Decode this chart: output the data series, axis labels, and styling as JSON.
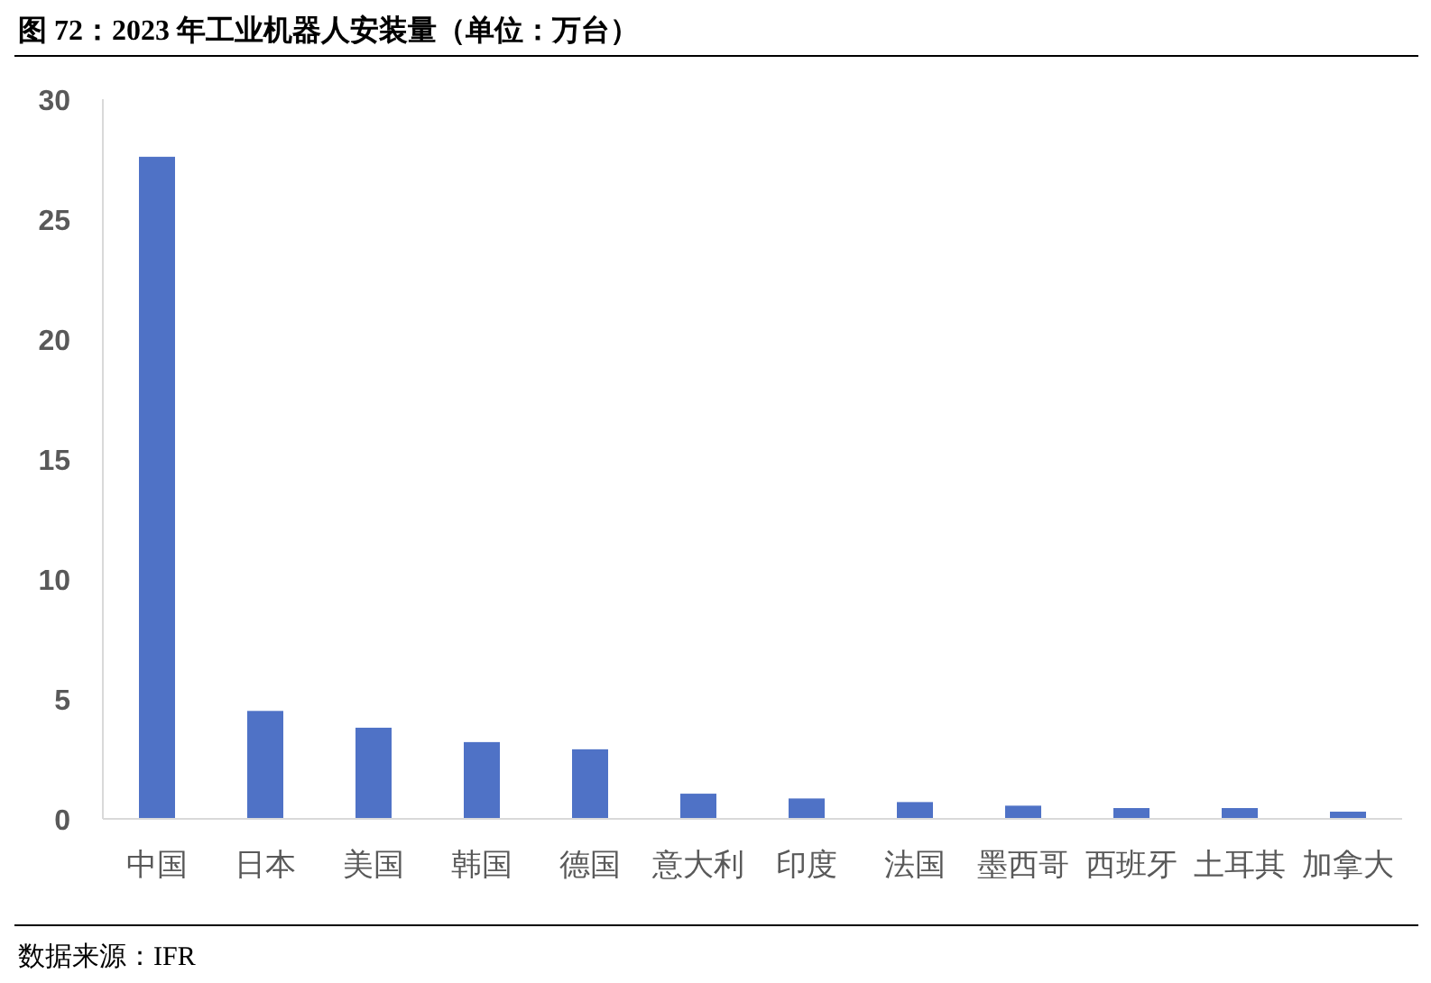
{
  "chart_data": {
    "type": "bar",
    "title": "图 72：2023 年工业机器人安装量（单位：万台）",
    "categories": [
      "中国",
      "日本",
      "美国",
      "韩国",
      "德国",
      "意大利",
      "印度",
      "法国",
      "墨西哥",
      "西班牙",
      "土耳其",
      "加拿大"
    ],
    "values": [
      27.6,
      4.5,
      3.8,
      3.2,
      2.9,
      1.05,
      0.85,
      0.7,
      0.55,
      0.45,
      0.45,
      0.3
    ],
    "color": "#4f72c6",
    "ylim": [
      0,
      30
    ],
    "yticks": [
      0,
      5,
      10,
      15,
      20,
      25,
      30
    ],
    "annotations": [
      "数据来源：IFR"
    ]
  }
}
